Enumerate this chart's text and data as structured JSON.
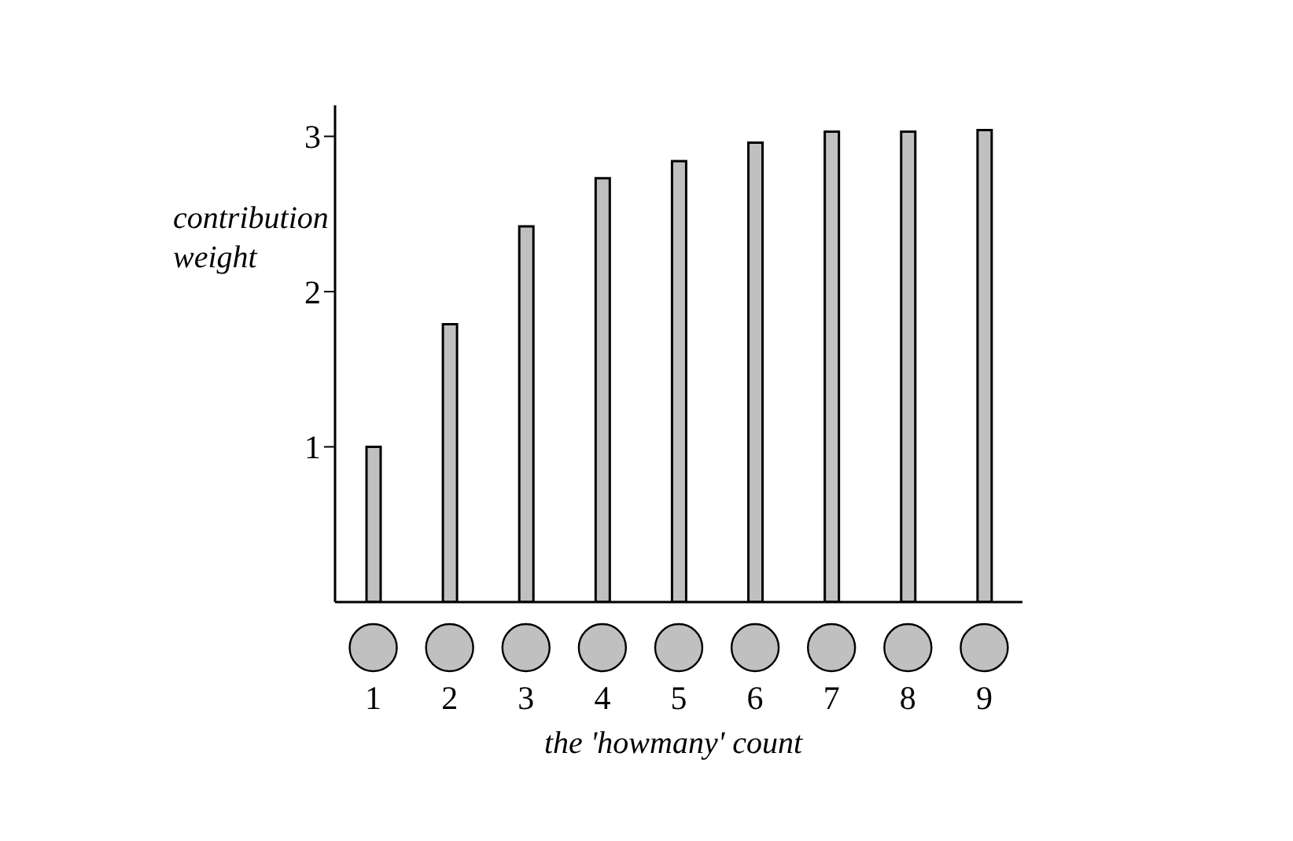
{
  "chart_data": {
    "type": "bar",
    "xlabel": "the 'howmany' count",
    "ylabel": "contribution weight",
    "categories": [
      "1",
      "2",
      "3",
      "4",
      "5",
      "6",
      "7",
      "8",
      "9"
    ],
    "values": [
      1.0,
      1.79,
      2.42,
      2.73,
      2.84,
      2.96,
      3.03,
      3.03,
      3.04
    ],
    "color": "#c0c0c0",
    "ylim": [
      0,
      3.2
    ],
    "yticks": [
      1,
      2,
      3
    ]
  }
}
